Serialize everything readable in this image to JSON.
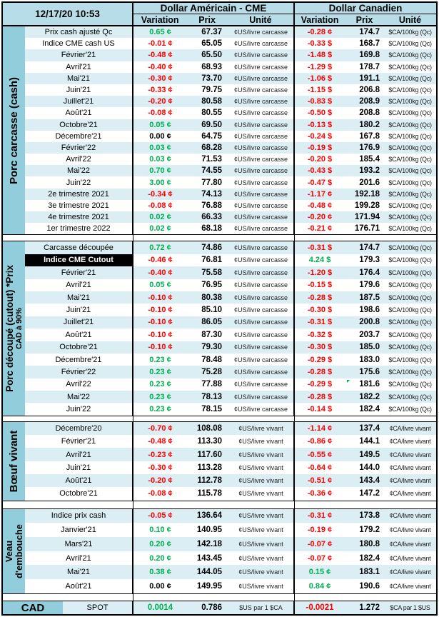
{
  "meta": {
    "timestamp": "12/17/20 10:53"
  },
  "header": {
    "us_title": "Dollar Américain - CME",
    "ca_title": "Dollar Canadien",
    "columns": {
      "variation": "Variation",
      "prix": "Prix",
      "unite": "Unité"
    }
  },
  "colors": {
    "mid-blue": "#92CDDC",
    "header-blue": "#B7DEE8",
    "stripe-blue": "#DAEEF3",
    "green": "#00B050",
    "red": "#FF0000"
  },
  "sections": [
    {
      "id": "porc-carcasse-cash",
      "label_lines": [
        "Porc carcasse (cash)"
      ],
      "us_unit": "¢US/livre carcasse",
      "ca_unit": "$CA/100kg (Qc)",
      "rows": [
        {
          "label": "Prix cash ajusté Qc",
          "us_var": "0.65 ¢",
          "us_dir": "pos",
          "us_prix": "67.37",
          "ca_var": "-0.28 ¢",
          "ca_dir": "neg",
          "ca_prix": "174.7"
        },
        {
          "label": "Indice CME cash US",
          "us_var": "-0.01 ¢",
          "us_dir": "neg",
          "us_prix": "65.05",
          "ca_var": "-0.33 $",
          "ca_dir": "neg",
          "ca_prix": "168.7"
        },
        {
          "label": "Février'21",
          "us_var": "-0.48 ¢",
          "us_dir": "neg",
          "us_prix": "65.50",
          "ca_var": "-1.48 $",
          "ca_dir": "neg",
          "ca_prix": "169.8"
        },
        {
          "label": "Avril'21",
          "us_var": "-0.40 ¢",
          "us_dir": "neg",
          "us_prix": "68.93",
          "ca_var": "-1.29 $",
          "ca_dir": "neg",
          "ca_prix": "178.7"
        },
        {
          "label": "Mai'21",
          "us_var": "-0.30 ¢",
          "us_dir": "neg",
          "us_prix": "73.70",
          "ca_var": "-1.06 $",
          "ca_dir": "neg",
          "ca_prix": "191.1"
        },
        {
          "label": "Juin'21",
          "us_var": "-0.33 ¢",
          "us_dir": "neg",
          "us_prix": "79.75",
          "ca_var": "-1.15 $",
          "ca_dir": "neg",
          "ca_prix": "206.8"
        },
        {
          "label": "Juillet'21",
          "us_var": "-0.20 ¢",
          "us_dir": "neg",
          "us_prix": "80.58",
          "ca_var": "-0.83 $",
          "ca_dir": "neg",
          "ca_prix": "208.9"
        },
        {
          "label": "Août'21",
          "us_var": "-0.08 ¢",
          "us_dir": "neg",
          "us_prix": "80.55",
          "ca_var": "-0.50 $",
          "ca_dir": "neg",
          "ca_prix": "208.8"
        },
        {
          "label": "Octobre'21",
          "us_var": "0.05 ¢",
          "us_dir": "pos",
          "us_prix": "69.50",
          "ca_var": "-0.13 $",
          "ca_dir": "neg",
          "ca_prix": "180.2"
        },
        {
          "label": "Décembre'21",
          "us_var": "0.00 ¢",
          "us_dir": "zero",
          "us_prix": "64.75",
          "ca_var": "-0.24 $",
          "ca_dir": "neg",
          "ca_prix": "167.8"
        },
        {
          "label": "Février'22",
          "us_var": "0.03 ¢",
          "us_dir": "pos",
          "us_prix": "68.28",
          "ca_var": "-0.19 $",
          "ca_dir": "neg",
          "ca_prix": "176.9"
        },
        {
          "label": "Avril'22",
          "us_var": "0.03 ¢",
          "us_dir": "pos",
          "us_prix": "71.53",
          "ca_var": "-0.20 $",
          "ca_dir": "neg",
          "ca_prix": "185.4"
        },
        {
          "label": "Mai'22",
          "us_var": "0.70 ¢",
          "us_dir": "pos",
          "us_prix": "74.55",
          "ca_var": "-0.43 $",
          "ca_dir": "neg",
          "ca_prix": "193.2"
        },
        {
          "label": "Juin'22",
          "us_var": "3.00 ¢",
          "us_dir": "pos",
          "us_prix": "77.80",
          "ca_var": "-0.47 $",
          "ca_dir": "neg",
          "ca_prix": "201.6"
        },
        {
          "label": "2e trimestre 2021",
          "us_var": "-0.34 ¢",
          "us_dir": "neg",
          "us_prix": "74.13",
          "ca_var": "-1.17 ¢",
          "ca_dir": "neg",
          "ca_prix": "192.18"
        },
        {
          "label": "3e trimestre 2021",
          "us_var": "-0.08 ¢",
          "us_dir": "neg",
          "us_prix": "76.88",
          "ca_var": "-0.48 ¢",
          "ca_dir": "neg",
          "ca_prix": "199.28"
        },
        {
          "label": "4e trimestre 2021",
          "us_var": "0.02 ¢",
          "us_dir": "pos",
          "us_prix": "66.33",
          "ca_var": "-0.20 ¢",
          "ca_dir": "neg",
          "ca_prix": "171.94"
        },
        {
          "label": "1er trimestre 2022",
          "us_var": "0.02 ¢",
          "us_dir": "pos",
          "us_prix": "68.18",
          "ca_var": "-0.21 ¢",
          "ca_dir": "neg",
          "ca_prix": "176.71"
        }
      ]
    },
    {
      "id": "porc-decoupe-cutout",
      "label_lines": [
        "Porc découpé (cutout) *Prix",
        "CAD à 90%"
      ],
      "us_unit": "¢US/livre carcasse",
      "ca_unit": "$CA/100kg (Qc)",
      "rows": [
        {
          "label": "Carcasse découpée",
          "us_var": "0.72 ¢",
          "us_dir": "pos",
          "us_prix": "74.86",
          "ca_var": "-0.31 $",
          "ca_dir": "neg",
          "ca_prix": "174.7"
        },
        {
          "label": "Indice CME Cutout",
          "selected": true,
          "us_var": "-0.46 ¢",
          "us_dir": "neg",
          "us_prix": "76.81",
          "ca_var": "4.24 $",
          "ca_dir": "pos",
          "ca_prix": "179.3"
        },
        {
          "label": "Février'21",
          "us_var": "-0.40 ¢",
          "us_dir": "neg",
          "us_prix": "75.58",
          "ca_var": "-1.20 $",
          "ca_dir": "neg",
          "ca_prix": "176.4"
        },
        {
          "label": "Avril'21",
          "us_var": "0.05 ¢",
          "us_dir": "pos",
          "us_prix": "76.95",
          "ca_var": "-0.15 $",
          "ca_dir": "neg",
          "ca_prix": "179.6"
        },
        {
          "label": "Mai'21",
          "us_var": "-0.10 ¢",
          "us_dir": "neg",
          "us_prix": "80.38",
          "ca_var": "-0.28 $",
          "ca_dir": "neg",
          "ca_prix": "187.5"
        },
        {
          "label": "Juin'21",
          "us_var": "-0.10 ¢",
          "us_dir": "neg",
          "us_prix": "85.10",
          "ca_var": "-0.30 $",
          "ca_dir": "neg",
          "ca_prix": "198.6"
        },
        {
          "label": "Juillet'21",
          "us_var": "-0.10 ¢",
          "us_dir": "neg",
          "us_prix": "86.05",
          "ca_var": "-0.31 $",
          "ca_dir": "neg",
          "ca_prix": "200.8"
        },
        {
          "label": "Août'21",
          "us_var": "-0.10 ¢",
          "us_dir": "neg",
          "us_prix": "87.30",
          "ca_var": "-0.32 $",
          "ca_dir": "neg",
          "ca_prix": "203.7"
        },
        {
          "label": "Octobre'21",
          "us_var": "-0.10 ¢",
          "us_dir": "neg",
          "us_prix": "79.30",
          "ca_var": "-0.30 $",
          "ca_dir": "neg",
          "ca_prix": "185.0"
        },
        {
          "label": "Décembre'21",
          "us_var": "0.23 ¢",
          "us_dir": "pos",
          "us_prix": "78.48",
          "ca_var": "-0.29 $",
          "ca_dir": "neg",
          "ca_prix": "183.0"
        },
        {
          "label": "Février'22",
          "us_var": "0.23 ¢",
          "us_dir": "pos",
          "us_prix": "75.28",
          "ca_var": "-0.28 $",
          "ca_dir": "neg",
          "ca_prix": "175.6"
        },
        {
          "label": "Avril'22",
          "us_var": "0.23 ¢",
          "us_dir": "pos",
          "us_prix": "77.88",
          "ca_var": "-0.29 $",
          "ca_dir": "neg",
          "ca_prix": "181.6",
          "ca_flag": true
        },
        {
          "label": "Mai'22",
          "us_var": "0.23 ¢",
          "us_dir": "pos",
          "us_prix": "78.13",
          "ca_var": "-0.28 $",
          "ca_dir": "neg",
          "ca_prix": "182.2"
        },
        {
          "label": "Juin'22",
          "us_var": "0.23 ¢",
          "us_dir": "pos",
          "us_prix": "78.15",
          "ca_var": "-0.14 $",
          "ca_dir": "neg",
          "ca_prix": "182.4"
        }
      ]
    },
    {
      "id": "boeuf-vivant",
      "label_lines": [
        "Bœuf vivant"
      ],
      "us_unit": "¢US/livre vivant",
      "ca_unit": "¢CA/livre vivant",
      "rows": [
        {
          "label": "Décembre'20",
          "us_var": "-0.70 ¢",
          "us_dir": "neg",
          "us_prix": "108.08",
          "ca_var": "-1.14 ¢",
          "ca_dir": "neg",
          "ca_prix": "137.4"
        },
        {
          "label": "Février'21",
          "us_var": "-0.48 ¢",
          "us_dir": "neg",
          "us_prix": "113.30",
          "ca_var": "-0.86 ¢",
          "ca_dir": "neg",
          "ca_prix": "144.1"
        },
        {
          "label": "Avril'21",
          "us_var": "-0.23 ¢",
          "us_dir": "neg",
          "us_prix": "117.60",
          "ca_var": "-0.55 ¢",
          "ca_dir": "neg",
          "ca_prix": "149.5"
        },
        {
          "label": "Juin'21",
          "us_var": "-0.30 ¢",
          "us_dir": "neg",
          "us_prix": "113.28",
          "ca_var": "-0.64 ¢",
          "ca_dir": "neg",
          "ca_prix": "144.0"
        },
        {
          "label": "Août'21",
          "us_var": "-0.20 ¢",
          "us_dir": "neg",
          "us_prix": "112.78",
          "ca_var": "-0.51 ¢",
          "ca_dir": "neg",
          "ca_prix": "143.4"
        },
        {
          "label": "Octobre'21",
          "us_var": "-0.08 ¢",
          "us_dir": "neg",
          "us_prix": "115.78",
          "ca_var": "-0.36 ¢",
          "ca_dir": "neg",
          "ca_prix": "147.2"
        }
      ]
    },
    {
      "id": "veau-embouche",
      "label_lines": [
        "Veau",
        "d'embouche"
      ],
      "us_unit": "¢US/livre vivant",
      "ca_unit": "¢CA/livre vivant",
      "rows": [
        {
          "label": "Indice prix cash",
          "us_var": "-0.05 ¢",
          "us_dir": "neg",
          "us_prix": "136.64",
          "ca_var": "-0.31 ¢",
          "ca_dir": "neg",
          "ca_prix": "173.8"
        },
        {
          "label": "Janvier'21",
          "us_var": "0.10 ¢",
          "us_dir": "pos",
          "us_prix": "140.95",
          "ca_var": "-0.19 ¢",
          "ca_dir": "neg",
          "ca_prix": "179.2"
        },
        {
          "label": "Mars'21",
          "us_var": "0.20 ¢",
          "us_dir": "pos",
          "us_prix": "142.18",
          "ca_var": "-0.07 ¢",
          "ca_dir": "neg",
          "ca_prix": "180.8"
        },
        {
          "label": "Avril'21",
          "us_var": "0.20 ¢",
          "us_dir": "pos",
          "us_prix": "143.45",
          "ca_var": "-0.07 ¢",
          "ca_dir": "neg",
          "ca_prix": "182.4"
        },
        {
          "label": "Mai'21",
          "us_var": "0.38 ¢",
          "us_dir": "pos",
          "us_prix": "144.05",
          "ca_var": "0.15 ¢",
          "ca_dir": "pos",
          "ca_prix": "183.1"
        },
        {
          "label": "Août'21",
          "us_var": "0.00 ¢",
          "us_dir": "zero",
          "us_prix": "149.95",
          "ca_var": "0.84 ¢",
          "ca_dir": "pos",
          "ca_prix": "190.6"
        }
      ]
    }
  ],
  "footer": {
    "label": "CAD",
    "row_label": "SPOT",
    "us_var": "0.0014",
    "us_dir": "pos",
    "us_prix": "0.786",
    "us_unit": "$US par 1 $CA",
    "ca_var": "-0.0021",
    "ca_dir": "neg",
    "ca_prix": "1.272",
    "ca_unit": "$CA par 1 $US"
  }
}
